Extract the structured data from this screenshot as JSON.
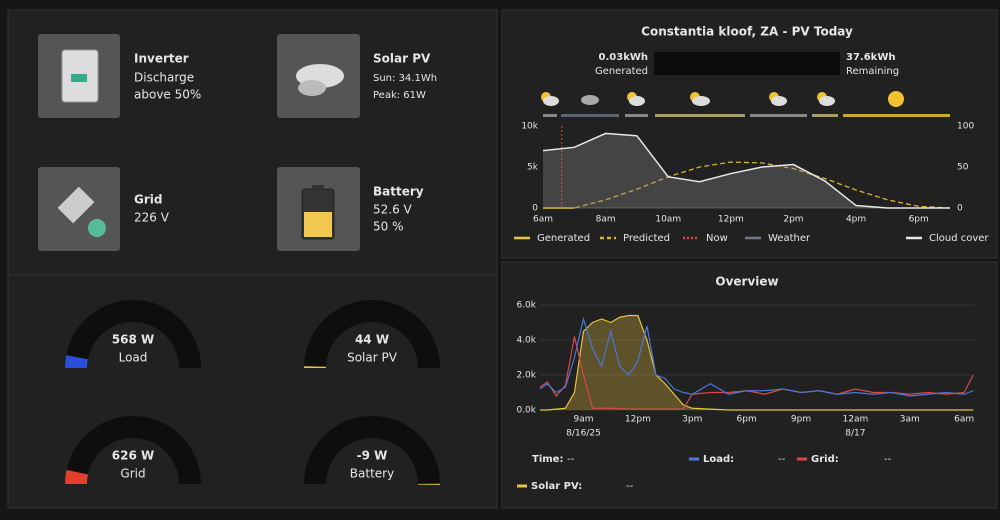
{
  "tiles": [
    {
      "title": "Inverter",
      "lines": [
        "Discharge",
        "above 50%"
      ]
    },
    {
      "title": "Solar PV",
      "lines": [
        "Sun: 34.1Wh",
        "Peak: 61W"
      ]
    },
    {
      "title": "Grid",
      "lines": [
        "226 V"
      ]
    },
    {
      "title": "Battery",
      "lines": [
        "52.6 V",
        "50 %"
      ]
    }
  ],
  "gauges": [
    {
      "label": "568 W",
      "name": "Load",
      "value": 568,
      "range": [
        0,
        10000
      ],
      "color": "#2b4fd8"
    },
    {
      "label": "44 W",
      "name": "Solar PV",
      "value": 44,
      "range": [
        0,
        10000
      ],
      "color": "#e8c440"
    },
    {
      "label": "626 W",
      "name": "Grid",
      "value": 626,
      "range": [
        0,
        10000
      ],
      "color": "#e0402a"
    },
    {
      "label": "-9 W",
      "name": "Battery",
      "value": -9,
      "range": [
        -10000,
        0
      ],
      "color": "#e8c440"
    }
  ],
  "pv_stats": {
    "generated": {
      "value": "0.03kWh",
      "label": "Generated"
    },
    "remaining": {
      "value": "37.6kWh",
      "label": "Remaining"
    }
  },
  "chart_data": [
    {
      "type": "line",
      "title": "Constantia kloof, ZA - PV Today",
      "x": [
        6,
        7,
        8,
        9,
        10,
        11,
        12,
        13,
        14,
        15,
        16,
        17,
        18,
        19
      ],
      "xlim": [
        6,
        19
      ],
      "xticks": [
        {
          "value": 6,
          "label": "6am"
        },
        {
          "value": 8,
          "label": "8am"
        },
        {
          "value": 10,
          "label": "10am"
        },
        {
          "value": 12,
          "label": "12pm"
        },
        {
          "value": 14,
          "label": "2pm"
        },
        {
          "value": 16,
          "label": "4pm"
        },
        {
          "value": 18,
          "label": "6pm"
        }
      ],
      "ylim": [
        0,
        10000
      ],
      "yticks": [
        0,
        {
          "value": 5000,
          "label": "5k"
        },
        {
          "value": 10000,
          "label": "10k"
        }
      ],
      "y2lim": [
        0,
        100
      ],
      "y2ticks": [
        0,
        50,
        100
      ],
      "series": [
        {
          "name": "Generated",
          "color": "#e8c440",
          "values": [
            0,
            0,
            null,
            null,
            null,
            null,
            null,
            null,
            null,
            null,
            null,
            null,
            null,
            null
          ]
        },
        {
          "name": "Predicted",
          "color": "#d8b430",
          "dash": true,
          "values": [
            0,
            0,
            1000,
            2300,
            3800,
            5000,
            5600,
            5500,
            4800,
            3600,
            2200,
            1000,
            200,
            0
          ]
        },
        {
          "name": "Now",
          "color": "#e04848",
          "at": 6.6
        },
        {
          "name": "Weather",
          "color": "#6c7a8c"
        },
        {
          "name": "Cloud cover",
          "color": "#e8e8e8",
          "axis": "y2",
          "values": [
            70,
            74,
            91,
            88,
            38,
            32,
            42,
            50,
            53,
            33,
            3,
            0,
            0,
            0
          ]
        }
      ]
    },
    {
      "type": "line",
      "title": "Overview",
      "x": [
        6.6,
        7,
        7.5,
        8,
        8.5,
        9,
        9.5,
        10,
        10.5,
        11,
        11.5,
        12,
        12.5,
        13,
        13.5,
        14,
        14.5,
        15,
        16,
        17,
        18,
        19,
        20,
        21,
        22,
        23,
        24,
        25,
        26,
        27,
        28,
        29,
        30,
        30.5
      ],
      "xlim": [
        6.6,
        30.6
      ],
      "xticks": [
        {
          "value": 9,
          "label": "9am"
        },
        {
          "value": 12,
          "label": "12pm"
        },
        {
          "value": 15,
          "label": "3pm"
        },
        {
          "value": 18,
          "label": "6pm"
        },
        {
          "value": 21,
          "label": "9pm"
        },
        {
          "value": 24,
          "label": "12am"
        },
        {
          "value": 27,
          "label": "3am"
        },
        {
          "value": 30,
          "label": "6am"
        }
      ],
      "x_date_labels": [
        {
          "value": 9,
          "label": "8/16/25"
        },
        {
          "value": 24,
          "label": "8/17"
        }
      ],
      "ylim": [
        0,
        6000
      ],
      "yticks": [
        {
          "value": 0,
          "label": "0.0k"
        },
        {
          "value": 2000,
          "label": "2.0k"
        },
        {
          "value": 4000,
          "label": "4.0k"
        },
        {
          "value": 6000,
          "label": "6.0k"
        }
      ],
      "time_readout": {
        "label": "Time:",
        "value": "--"
      },
      "series": [
        {
          "name": "Load:",
          "readout": "--",
          "color": "#4a78d8",
          "values": [
            1200,
            1500,
            1000,
            1300,
            3000,
            5200,
            3500,
            2500,
            4500,
            2500,
            2000,
            2800,
            4800,
            2000,
            1800,
            1200,
            1000,
            900,
            1500,
            900,
            1100,
            1100,
            1200,
            1000,
            1100,
            900,
            1000,
            900,
            1000,
            800,
            900,
            1000,
            900,
            1100
          ]
        },
        {
          "name": "Grid:",
          "readout": "--",
          "color": "#d84848",
          "values": [
            1300,
            1600,
            800,
            1400,
            4200,
            2000,
            100,
            100,
            100,
            80,
            60,
            50,
            50,
            50,
            50,
            50,
            50,
            900,
            1000,
            1000,
            1100,
            900,
            1200,
            1000,
            1100,
            900,
            1200,
            1000,
            1000,
            900,
            1000,
            900,
            1000,
            2000
          ]
        },
        {
          "name": "Solar PV:",
          "readout": "--",
          "color": "#e8c440",
          "fill": true,
          "values": [
            0,
            0,
            50,
            100,
            1000,
            4500,
            5000,
            5200,
            5000,
            5300,
            5400,
            5400,
            4000,
            2000,
            1500,
            900,
            300,
            100,
            50,
            0,
            0,
            0,
            0,
            0,
            0,
            0,
            0,
            0,
            0,
            0,
            0,
            0,
            0,
            0
          ]
        }
      ]
    }
  ]
}
